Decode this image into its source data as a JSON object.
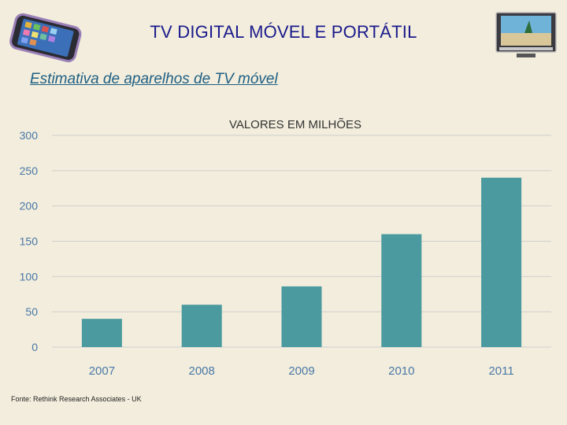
{
  "slide": {
    "title": "TV DIGITAL MÓVEL E PORTÁTIL",
    "subtitle": "Estimativa de aparelhos de TV móvel",
    "source": "Fonte: Rethink Research Associates - UK"
  },
  "icons": {
    "left": "smartphone-icon",
    "right": "television-icon"
  },
  "colors": {
    "bar": "#4a9a9f",
    "title": "#1a1a8c",
    "subtitle": "#1f5f84",
    "axis_text": "#4a78a8"
  },
  "chart_data": {
    "type": "bar",
    "title": "VALORES EM MILHÕES",
    "categories": [
      "2007",
      "2008",
      "2009",
      "2010",
      "2011"
    ],
    "values": [
      40,
      60,
      86,
      160,
      240
    ],
    "ylim": [
      0,
      300
    ],
    "yticks": [
      "0",
      "50",
      "100",
      "150",
      "200",
      "250",
      "300"
    ],
    "grid": true
  }
}
